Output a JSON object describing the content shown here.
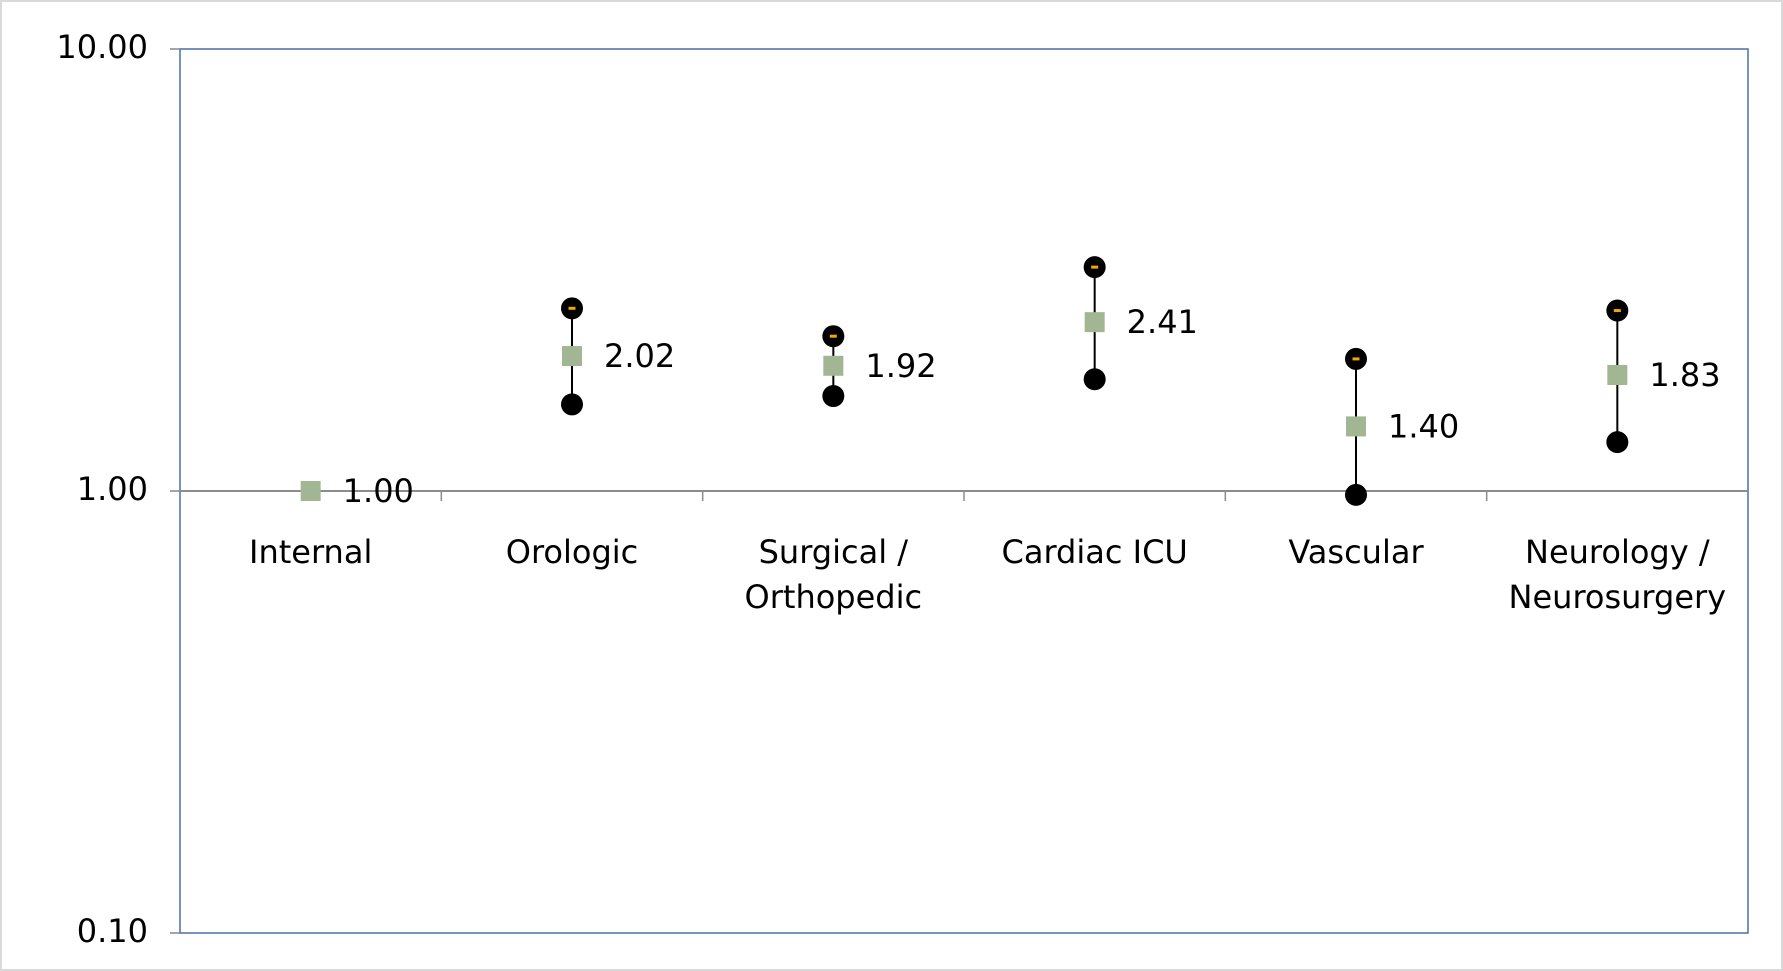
{
  "chart_data": {
    "type": "interval",
    "categories": [
      "Internal",
      "Orologic",
      "Surgical / Orthopedic",
      "Cardiac ICU",
      "Vascular",
      "Neurology / Neurosurgery"
    ],
    "values": [
      1.0,
      2.02,
      1.92,
      2.41,
      1.4,
      1.83
    ],
    "value_labels": [
      "1.00",
      "2.02",
      "1.92",
      "2.41",
      "1.40",
      "1.83"
    ],
    "lower": [
      null,
      1.57,
      1.64,
      1.79,
      0.98,
      1.29
    ],
    "upper": [
      null,
      2.59,
      2.24,
      3.21,
      1.99,
      2.56
    ],
    "color": "#a2b694",
    "interval_color": "#000000",
    "ylim": [
      0.1,
      10
    ],
    "yticks": [
      {
        "value": 10,
        "label": "10.00"
      },
      {
        "value": 1,
        "label": "1.00"
      },
      {
        "value": 0.1,
        "label": "0.10"
      }
    ],
    "log_scale": true,
    "axis_crossing": 1
  }
}
